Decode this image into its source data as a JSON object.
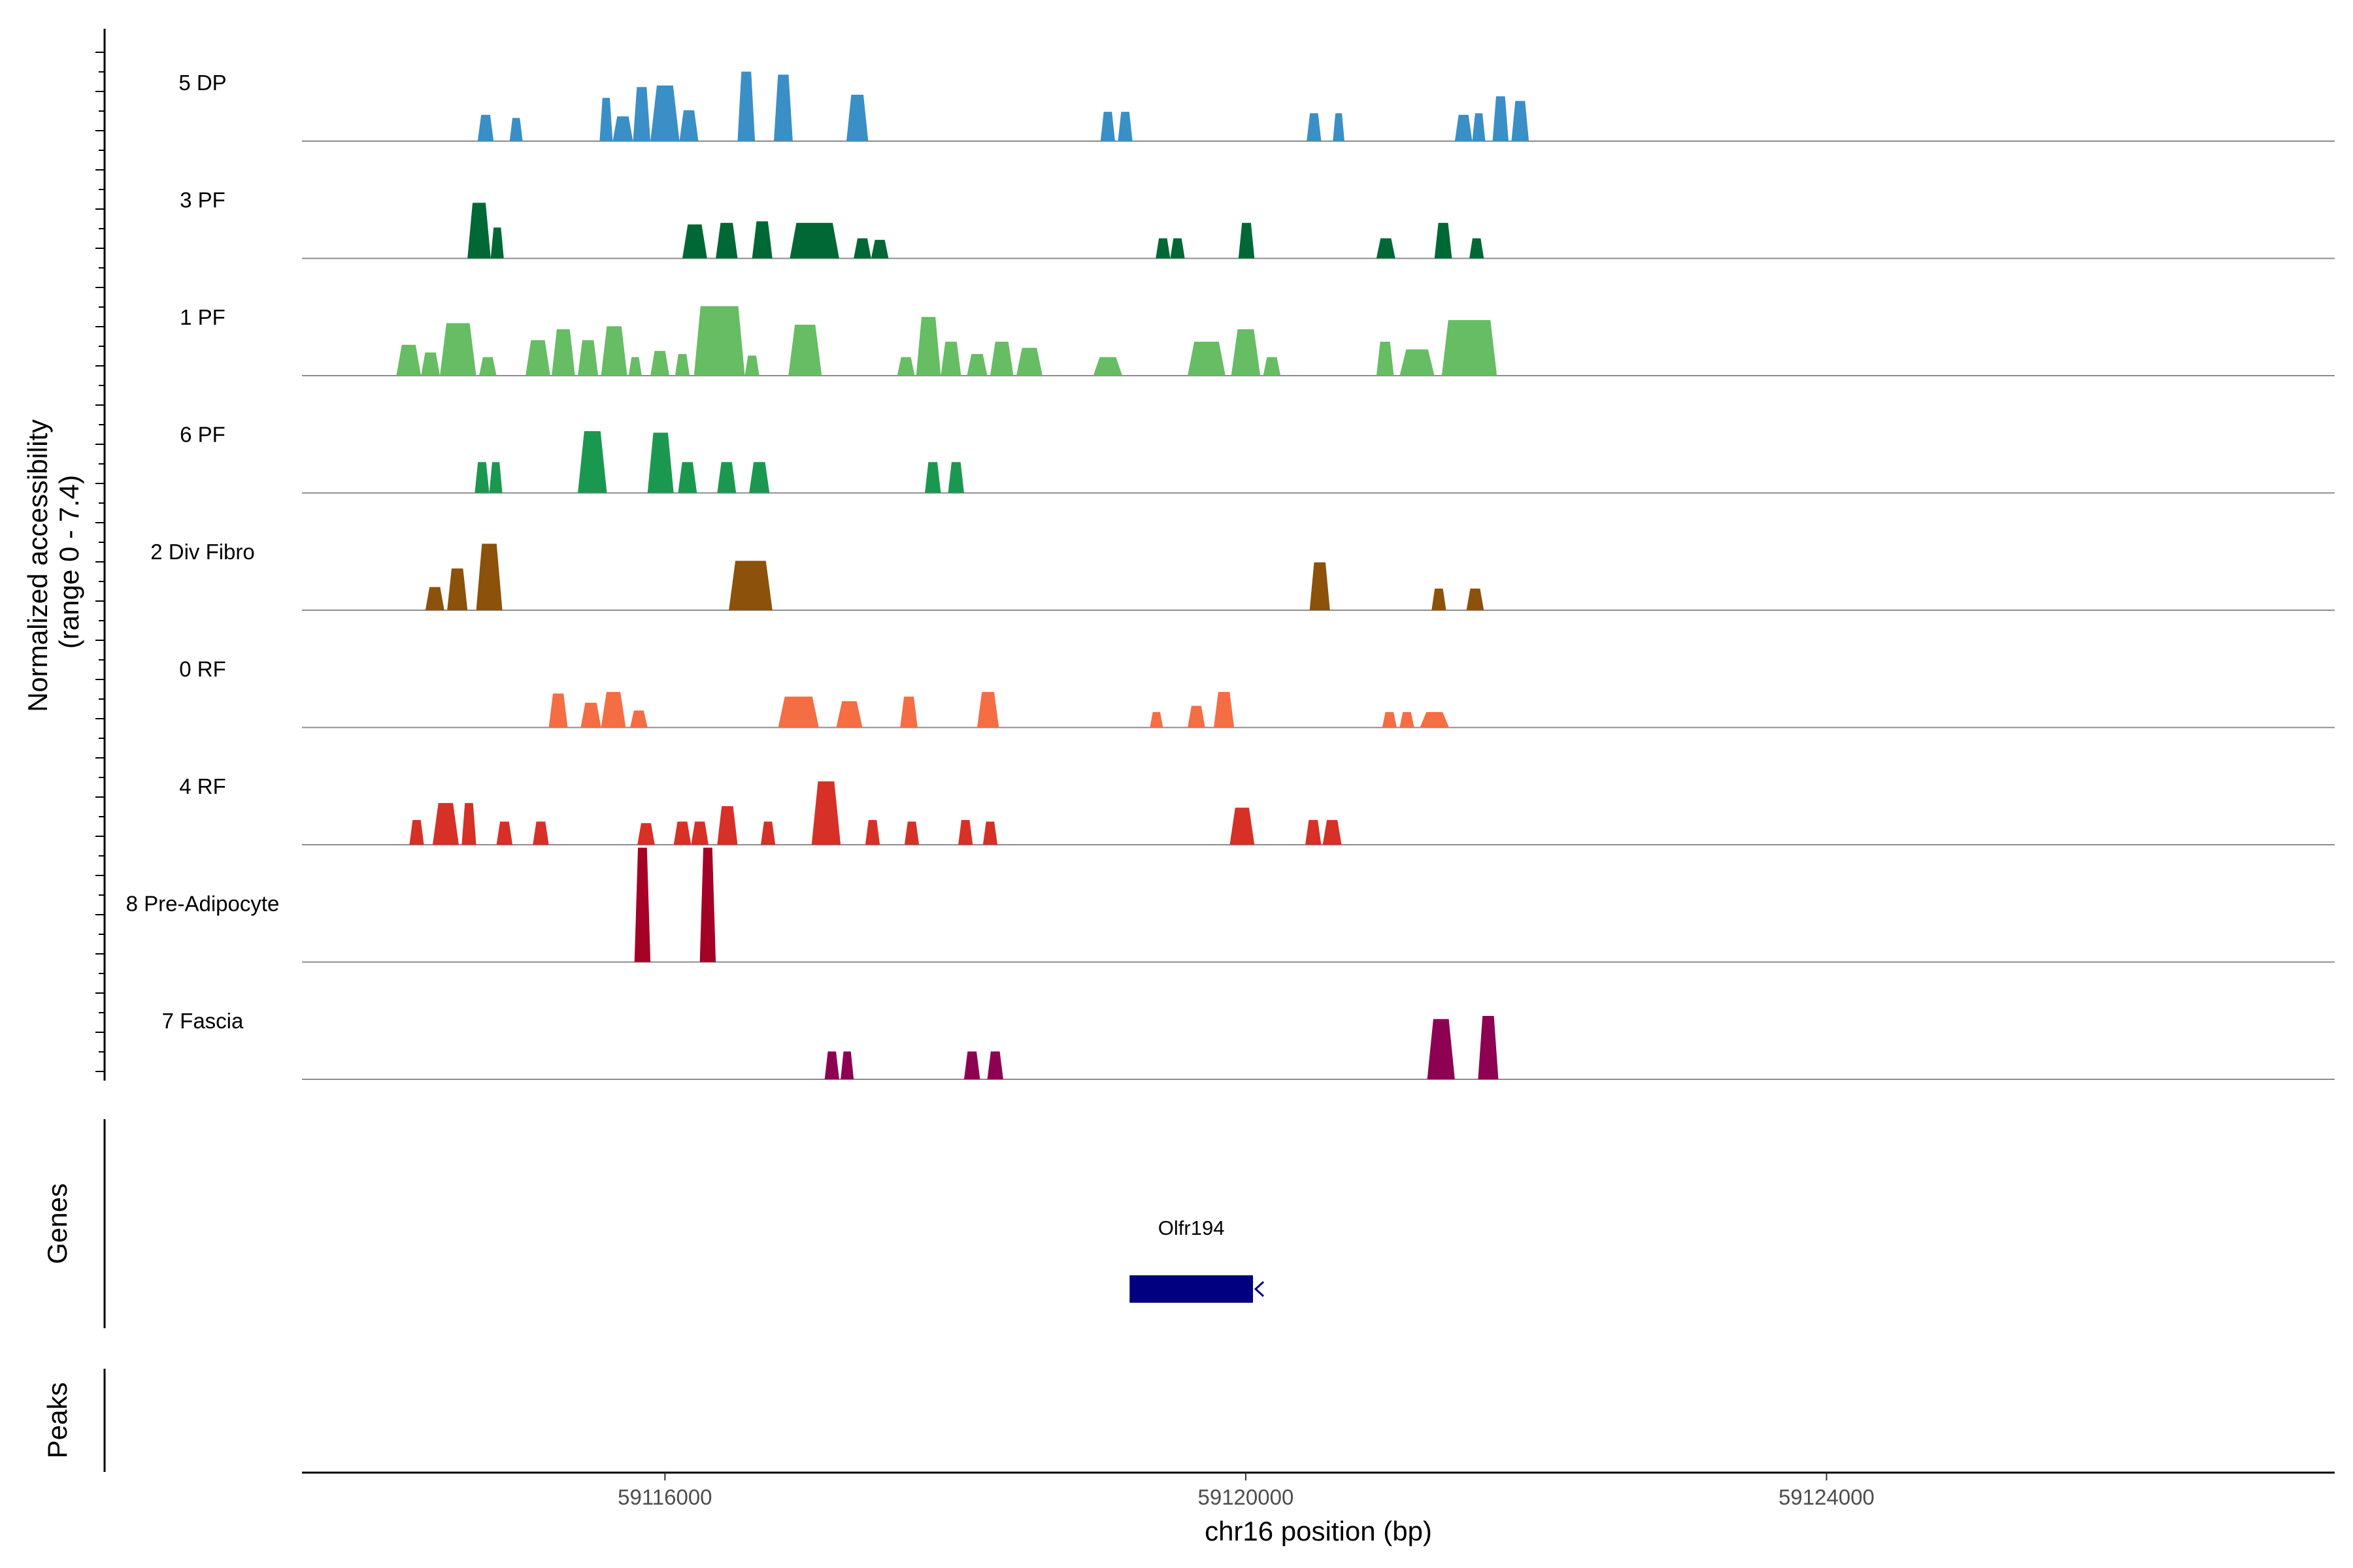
{
  "chart_data": {
    "type": "area",
    "title": "",
    "xlabel": "chr16 position (bp)",
    "ylabel_line1": "Normalized accessibility",
    "ylabel_line2": "(range 0 - 7.4)",
    "y_range": [
      0,
      7.4
    ],
    "x_range": [
      59113500,
      59127500
    ],
    "x_ticks": [
      59116000,
      59120000,
      59124000
    ],
    "x_tick_labels": [
      "59116000",
      "59120000",
      "59124000"
    ],
    "tracks": [
      {
        "name": "5 DP",
        "color": "#3A8FC6",
        "peaks": [
          [
            59114710,
            59114820,
            1.7
          ],
          [
            59114930,
            59115020,
            1.5
          ],
          [
            59115550,
            59115640,
            2.8
          ],
          [
            59115640,
            59115780,
            1.6
          ],
          [
            59115780,
            59115900,
            3.5
          ],
          [
            59115900,
            59116100,
            3.6
          ],
          [
            59116100,
            59116230,
            2.0
          ],
          [
            59116500,
            59116620,
            4.5
          ],
          [
            59116750,
            59116880,
            4.3
          ],
          [
            59117250,
            59117400,
            3.0
          ],
          [
            59119000,
            59119100,
            1.9
          ],
          [
            59119120,
            59119220,
            1.9
          ],
          [
            59120420,
            59120520,
            1.8
          ],
          [
            59120600,
            59120680,
            1.8
          ],
          [
            59121440,
            59121560,
            1.7
          ],
          [
            59121560,
            59121650,
            1.8
          ],
          [
            59121700,
            59121810,
            2.9
          ],
          [
            59121830,
            59121950,
            2.6
          ]
        ]
      },
      {
        "name": "3 PF",
        "color": "#006835",
        "peaks": [
          [
            59114640,
            59114800,
            3.6
          ],
          [
            59114800,
            59114890,
            2.0
          ],
          [
            59116120,
            59116290,
            2.2
          ],
          [
            59116350,
            59116500,
            2.3
          ],
          [
            59116600,
            59116740,
            2.4
          ],
          [
            59116860,
            59117200,
            2.3
          ],
          [
            59117300,
            59117420,
            1.3
          ],
          [
            59117420,
            59117540,
            1.2
          ],
          [
            59119380,
            59119480,
            1.3
          ],
          [
            59119480,
            59119580,
            1.3
          ],
          [
            59119950,
            59120060,
            2.3
          ],
          [
            59120900,
            59121030,
            1.3
          ],
          [
            59121300,
            59121420,
            2.3
          ],
          [
            59121540,
            59121640,
            1.3
          ]
        ]
      },
      {
        "name": "1 PF",
        "color": "#66BD63",
        "peaks": [
          [
            59114150,
            59114320,
            2.0
          ],
          [
            59114320,
            59114450,
            1.5
          ],
          [
            59114450,
            59114700,
            3.4
          ],
          [
            59114720,
            59114840,
            1.2
          ],
          [
            59115040,
            59115210,
            2.3
          ],
          [
            59115220,
            59115380,
            3.0
          ],
          [
            59115400,
            59115540,
            2.3
          ],
          [
            59115560,
            59115740,
            3.2
          ],
          [
            59115750,
            59115840,
            1.2
          ],
          [
            59115900,
            59116030,
            1.6
          ],
          [
            59116070,
            59116170,
            1.4
          ],
          [
            59116200,
            59116550,
            4.5
          ],
          [
            59116550,
            59116650,
            1.3
          ],
          [
            59116850,
            59117080,
            3.3
          ],
          [
            59117600,
            59117720,
            1.2
          ],
          [
            59117730,
            59117900,
            3.8
          ],
          [
            59117900,
            59118040,
            2.2
          ],
          [
            59118080,
            59118220,
            1.4
          ],
          [
            59118240,
            59118400,
            2.2
          ],
          [
            59118420,
            59118600,
            1.8
          ],
          [
            59118950,
            59119150,
            1.2
          ],
          [
            59119600,
            59119860,
            2.2
          ],
          [
            59119900,
            59120100,
            3.0
          ],
          [
            59120120,
            59120240,
            1.2
          ],
          [
            59120900,
            59121020,
            2.2
          ],
          [
            59121060,
            59121300,
            1.7
          ],
          [
            59121350,
            59121730,
            3.6
          ]
        ]
      },
      {
        "name": "6 PF",
        "color": "#1A9850",
        "peaks": [
          [
            59114690,
            59114790,
            2.0
          ],
          [
            59114790,
            59114880,
            2.0
          ],
          [
            59115400,
            59115600,
            4.0
          ],
          [
            59115880,
            59116060,
            3.9
          ],
          [
            59116090,
            59116220,
            2.0
          ],
          [
            59116360,
            59116490,
            2.0
          ],
          [
            59116580,
            59116720,
            2.0
          ],
          [
            59117790,
            59117900,
            2.0
          ],
          [
            59117950,
            59118060,
            2.0
          ]
        ]
      },
      {
        "name": "2 Div Fibro",
        "color": "#8C510A",
        "peaks": [
          [
            59114350,
            59114480,
            1.5
          ],
          [
            59114500,
            59114640,
            2.7
          ],
          [
            59114700,
            59114880,
            4.3
          ],
          [
            59116440,
            59116740,
            3.2
          ],
          [
            59120440,
            59120580,
            3.1
          ],
          [
            59121280,
            59121380,
            1.4
          ],
          [
            59121520,
            59121640,
            1.4
          ]
        ]
      },
      {
        "name": "0 RF",
        "color": "#F46D43",
        "peaks": [
          [
            59115200,
            59115330,
            2.2
          ],
          [
            59115420,
            59115560,
            1.6
          ],
          [
            59115560,
            59115730,
            2.3
          ],
          [
            59115760,
            59115880,
            1.1
          ],
          [
            59116780,
            59117060,
            2.0
          ],
          [
            59117180,
            59117360,
            1.7
          ],
          [
            59117620,
            59117740,
            2.0
          ],
          [
            59118150,
            59118300,
            2.3
          ],
          [
            59119340,
            59119430,
            1.0
          ],
          [
            59119600,
            59119720,
            1.4
          ],
          [
            59119780,
            59119920,
            2.3
          ],
          [
            59120940,
            59121040,
            1.0
          ],
          [
            59121060,
            59121160,
            1.0
          ],
          [
            59121200,
            59121400,
            1.0
          ]
        ]
      },
      {
        "name": "4 RF",
        "color": "#D73027",
        "peaks": [
          [
            59114240,
            59114340,
            1.6
          ],
          [
            59114400,
            59114580,
            2.7
          ],
          [
            59114600,
            59114700,
            2.7
          ],
          [
            59114840,
            59114950,
            1.5
          ],
          [
            59115090,
            59115200,
            1.5
          ],
          [
            59115810,
            59115930,
            1.4
          ],
          [
            59116060,
            59116180,
            1.5
          ],
          [
            59116180,
            59116300,
            1.5
          ],
          [
            59116360,
            59116500,
            2.5
          ],
          [
            59116660,
            59116760,
            1.5
          ],
          [
            59117010,
            59117210,
            4.1
          ],
          [
            59117380,
            59117480,
            1.6
          ],
          [
            59117650,
            59117750,
            1.5
          ],
          [
            59118020,
            59118120,
            1.6
          ],
          [
            59118190,
            59118290,
            1.5
          ],
          [
            59119890,
            59120060,
            2.4
          ],
          [
            59120410,
            59120520,
            1.6
          ],
          [
            59120530,
            59120660,
            1.6
          ]
        ]
      },
      {
        "name": "8 Pre-Adipocyte",
        "color": "#A50026",
        "peaks": [
          [
            59115790,
            59115900,
            7.4
          ],
          [
            59116240,
            59116350,
            7.4
          ]
        ]
      },
      {
        "name": "7 Fascia",
        "color": "#8E0152",
        "peaks": [
          [
            59117100,
            59117200,
            1.8
          ],
          [
            59117210,
            59117300,
            1.8
          ],
          [
            59118060,
            59118170,
            1.8
          ],
          [
            59118220,
            59118330,
            1.8
          ],
          [
            59121250,
            59121440,
            3.9
          ],
          [
            59121600,
            59121740,
            4.1
          ]
        ]
      }
    ],
    "genes": [
      {
        "name": "Olfr194",
        "start": 59119200,
        "end": 59120050,
        "strand": "-",
        "color": "#000080"
      }
    ],
    "panel_labels": {
      "genes": "Genes",
      "peaks": "Peaks"
    }
  }
}
